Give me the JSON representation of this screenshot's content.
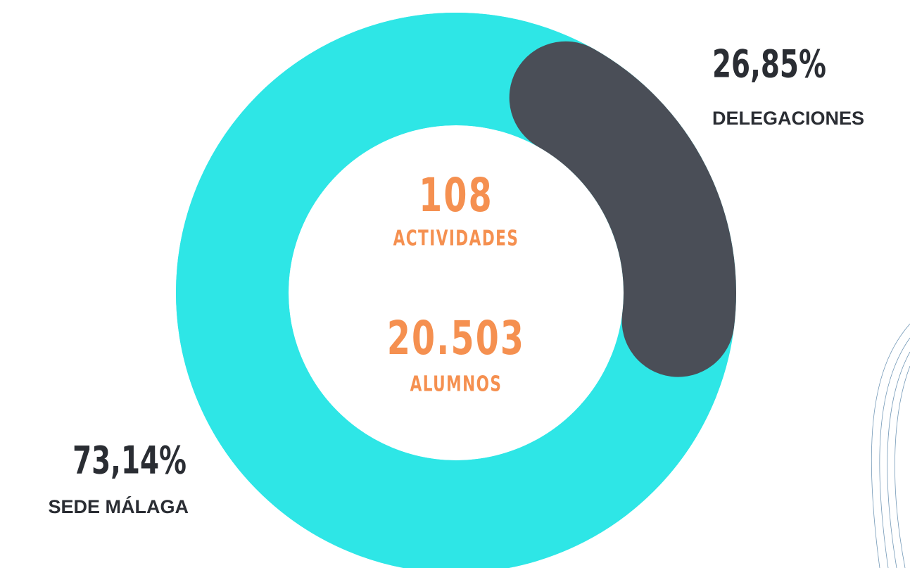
{
  "chart_data": {
    "type": "donut",
    "categories": [
      "SEDE MÁLAGA",
      "DELEGACIONES"
    ],
    "values": [
      73.14,
      26.85
    ],
    "value_labels": [
      "73,14%",
      "26,85%"
    ],
    "colors": [
      "#2ee6e6",
      "#4a4e57"
    ],
    "annotations": [
      "108",
      "ACTIVIDADES",
      "20.503",
      "ALUMNOS"
    ],
    "annotation_color": "#f59050"
  }
}
